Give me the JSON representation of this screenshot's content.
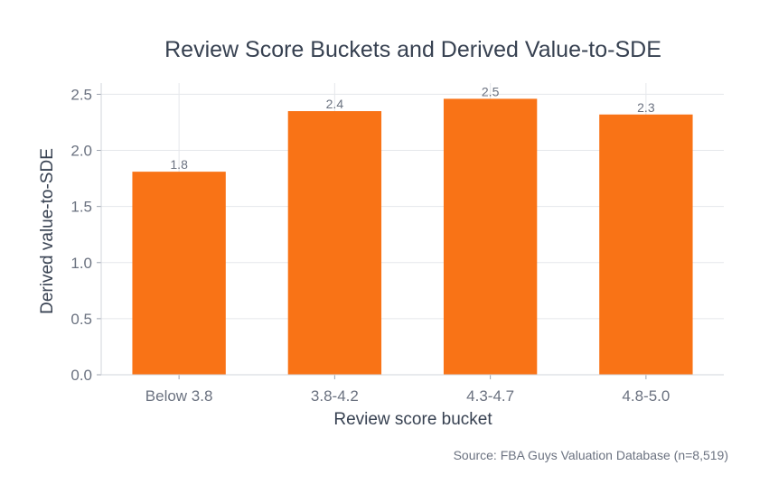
{
  "chart_data": {
    "type": "bar",
    "title": "Review Score Buckets and Derived Value-to-SDE",
    "xlabel": "Review score bucket",
    "ylabel": "Derived value-to-SDE",
    "categories": [
      "Below 3.8",
      "3.8-4.2",
      "4.3-4.7",
      "4.8-5.0"
    ],
    "values": [
      1.81,
      2.35,
      2.46,
      2.32
    ],
    "data_labels": [
      "1.8",
      "2.4",
      "2.5",
      "2.3"
    ],
    "ylim": [
      0,
      2.6
    ],
    "yticks": [
      0.0,
      0.5,
      1.0,
      1.5,
      2.0,
      2.5
    ],
    "ytick_labels": [
      "0.0",
      "0.5",
      "1.0",
      "1.5",
      "2.0",
      "2.5"
    ],
    "grid": true,
    "bar_color": "#f97316",
    "source": "Source: FBA Guys Valuation Database (n=8,519)"
  }
}
